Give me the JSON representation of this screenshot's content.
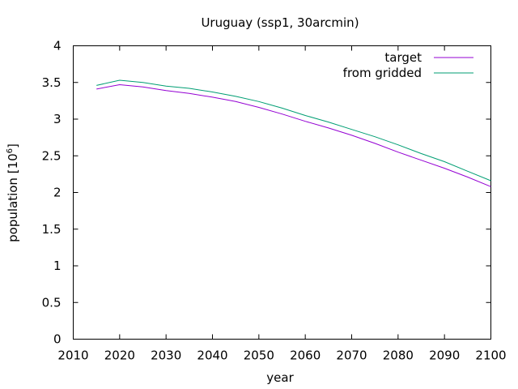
{
  "chart_data": {
    "type": "line",
    "title": "Uruguay (ssp1, 30arcmin)",
    "xlabel": "year",
    "ylabel": "population [10",
    "ylabel_sup": "6",
    "ylabel_close": "]",
    "xlim": [
      2010,
      2100
    ],
    "ylim": [
      0,
      4
    ],
    "x_ticks": [
      2010,
      2020,
      2030,
      2040,
      2050,
      2060,
      2070,
      2080,
      2090,
      2100
    ],
    "y_ticks": [
      0,
      0.5,
      1,
      1.5,
      2,
      2.5,
      3,
      3.5,
      4
    ],
    "y_tick_labels": [
      "0",
      "0.5",
      "1",
      "1.5",
      "2",
      "2.5",
      "3",
      "3.5",
      "4"
    ],
    "grid": false,
    "legend_position": "top-right",
    "x": [
      2015,
      2020,
      2025,
      2030,
      2035,
      2040,
      2045,
      2050,
      2055,
      2060,
      2065,
      2070,
      2075,
      2080,
      2085,
      2090,
      2095,
      2100
    ],
    "series": [
      {
        "name": "target",
        "color": "#9400d3",
        "values": [
          3.41,
          3.47,
          3.44,
          3.39,
          3.35,
          3.3,
          3.24,
          3.16,
          3.07,
          2.97,
          2.88,
          2.78,
          2.67,
          2.55,
          2.44,
          2.33,
          2.21,
          2.08
        ]
      },
      {
        "name": "from gridded",
        "color": "#009e73",
        "values": [
          3.46,
          3.53,
          3.5,
          3.45,
          3.42,
          3.37,
          3.31,
          3.24,
          3.15,
          3.05,
          2.96,
          2.86,
          2.76,
          2.65,
          2.53,
          2.42,
          2.29,
          2.16
        ]
      }
    ]
  }
}
